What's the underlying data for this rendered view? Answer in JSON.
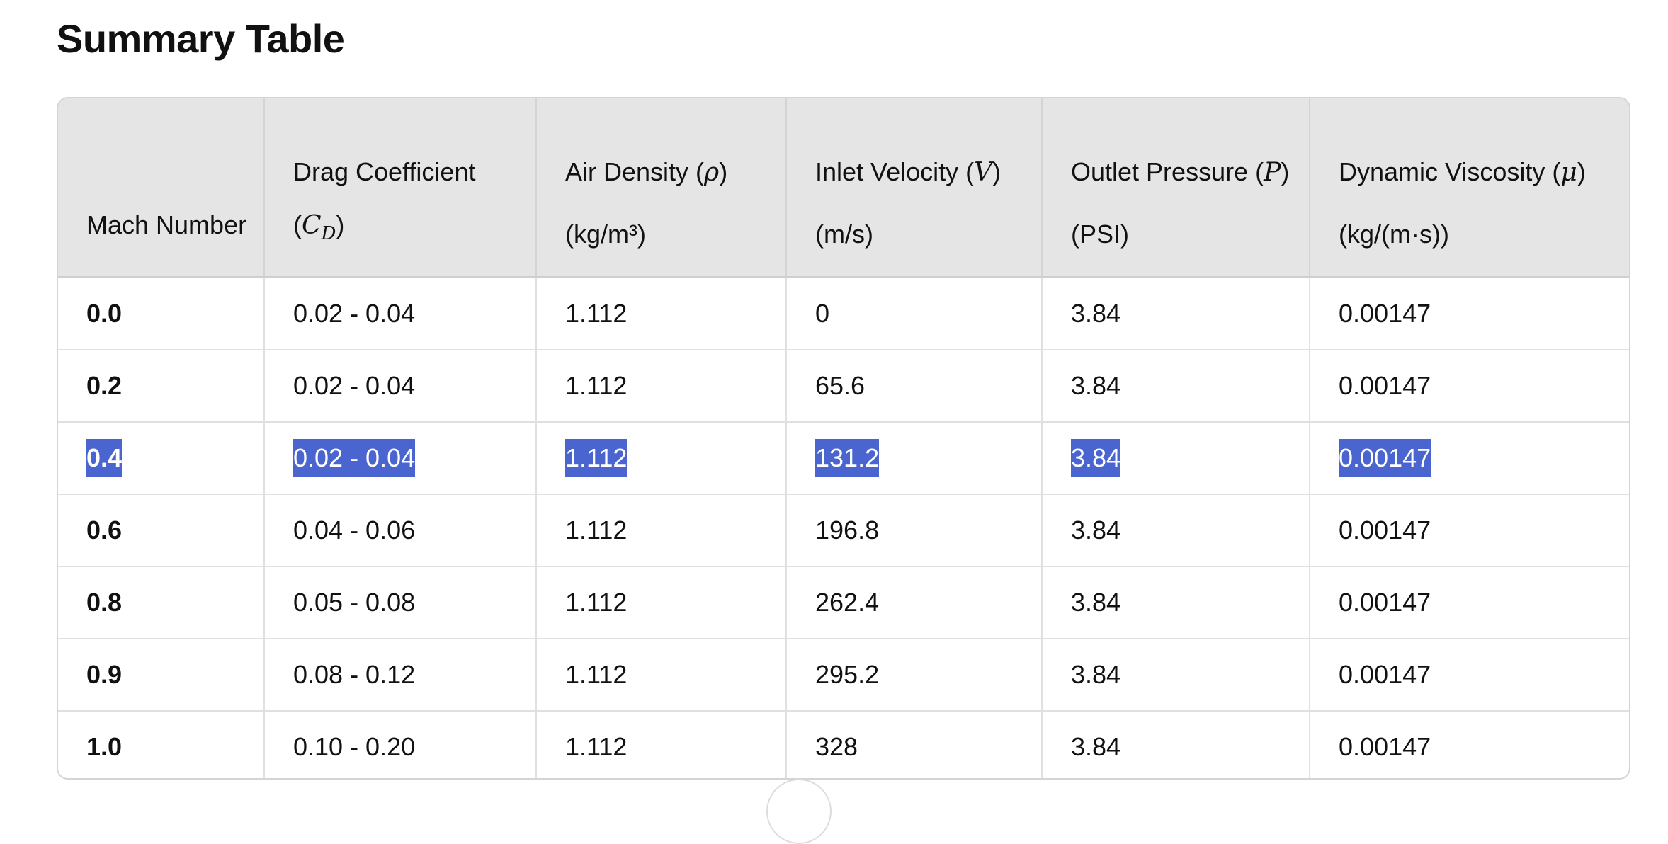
{
  "title": "Summary Table",
  "table": {
    "headers": [
      {
        "pre": "Mach Number",
        "sym": "",
        "sub": "",
        "post": ""
      },
      {
        "pre": "Drag Coefficient (",
        "sym": "C",
        "sub": "D",
        "post": ")"
      },
      {
        "pre": "Air Density (",
        "sym": "ρ",
        "sub": "",
        "post": ") (kg/m³)"
      },
      {
        "pre": "Inlet Velocity (",
        "sym": "V",
        "sub": "",
        "post": ") (m/s)"
      },
      {
        "pre": "Outlet Pressure (",
        "sym": "P",
        "sub": "",
        "post": ") (PSI)"
      },
      {
        "pre": "Dynamic Viscosity (",
        "sym": "μ",
        "sub": "",
        "post": ") (kg/(m·s))"
      }
    ],
    "rows": [
      [
        "0.0",
        "0.02 - 0.04",
        "1.112",
        "0",
        "3.84",
        "0.00147"
      ],
      [
        "0.2",
        "0.02 - 0.04",
        "1.112",
        "65.6",
        "3.84",
        "0.00147"
      ],
      [
        "0.4",
        "0.02 - 0.04",
        "1.112",
        "131.2",
        "3.84",
        "0.00147"
      ],
      [
        "0.6",
        "0.04 - 0.06",
        "1.112",
        "196.8",
        "3.84",
        "0.00147"
      ],
      [
        "0.8",
        "0.05 - 0.08",
        "1.112",
        "262.4",
        "3.84",
        "0.00147"
      ],
      [
        "0.9",
        "0.08 - 0.12",
        "1.112",
        "295.2",
        "3.84",
        "0.00147"
      ],
      [
        "1.0",
        "0.10 - 0.20",
        "1.112",
        "328",
        "3.84",
        "0.00147"
      ]
    ],
    "selected_row": 2
  },
  "colors": {
    "selection": "#4a64d0",
    "header_bg": "#e5e5e5"
  }
}
